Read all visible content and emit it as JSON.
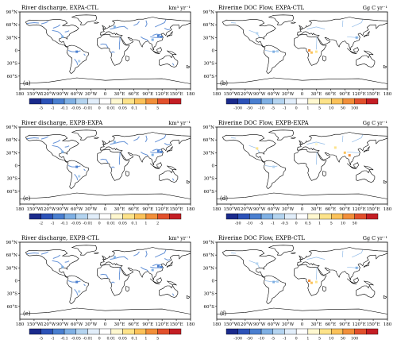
{
  "figure": {
    "panels": [
      {
        "letter": "(a)",
        "title": "River discharge, EXPA-CTL",
        "unit": "km³ yr⁻¹",
        "scale": "discharge_ab",
        "variable": "discharge"
      },
      {
        "letter": "(b)",
        "title": "Riverine DOC Flow, EXPA-CTL",
        "unit": "Gg C yr⁻¹",
        "scale": "doc_ab",
        "variable": "doc"
      },
      {
        "letter": "(c)",
        "title": "River discharge, EXPB-EXPA",
        "unit": "km³ yr⁻¹",
        "scale": "discharge_c",
        "variable": "discharge"
      },
      {
        "letter": "(d)",
        "title": "Riverine DOC Flow, EXPB-EXPA",
        "unit": "Gg C yr⁻¹",
        "scale": "doc_d",
        "variable": "doc"
      },
      {
        "letter": "(e)",
        "title": "River discharge, EXPB-CTL",
        "unit": "km³ yr⁻¹",
        "scale": "discharge_ab",
        "variable": "discharge"
      },
      {
        "letter": "(f)",
        "title": "Riverine DOC Flow, EXPB-CTL",
        "unit": "Gg C yr⁻¹",
        "scale": "doc_ab",
        "variable": "doc"
      }
    ],
    "lat_labels": [
      "90°N",
      "60°N",
      "30°N",
      "0",
      "30°S",
      "60°S"
    ],
    "lon_labels": [
      "180",
      "150°W",
      "120°W",
      "90°W",
      "60°W",
      "30°W",
      "0",
      "30°E",
      "60°E",
      "90°E",
      "120°E",
      "150°E",
      "180"
    ],
    "scales": {
      "discharge_ab": [
        "-5",
        "-1",
        "-0.1",
        "-0.05",
        "-0.01",
        "0",
        "0.01",
        "0.05",
        "0.1",
        "1",
        "5"
      ],
      "doc_ab": [
        "-100",
        "-50",
        "-10",
        "-5",
        "-1",
        "0",
        "1",
        "5",
        "10",
        "50",
        "100"
      ],
      "discharge_c": [
        "-2",
        "-1",
        "-0.1",
        "-0.05",
        "-0.01",
        "0",
        "0.01",
        "0.05",
        "0.1",
        "1",
        "2"
      ],
      "doc_d": [
        "-50",
        "-10",
        "-5",
        "-1",
        "-0.5",
        "0",
        "0.5",
        "1",
        "5",
        "10",
        "50"
      ]
    },
    "colors": {
      "palette": [
        "#1a2a8c",
        "#2c52b8",
        "#4a7fd0",
        "#7fb0e4",
        "#b4d4f0",
        "#e2eefa",
        "#ffffff",
        "#fff8d0",
        "#fde38a",
        "#fbc25a",
        "#f28f3a",
        "#e2502c",
        "#c41e24"
      ],
      "land_outline": "#000000",
      "discharge_rivers": "#4a7fd0",
      "doc_rivers": "#7fb0e4"
    }
  }
}
